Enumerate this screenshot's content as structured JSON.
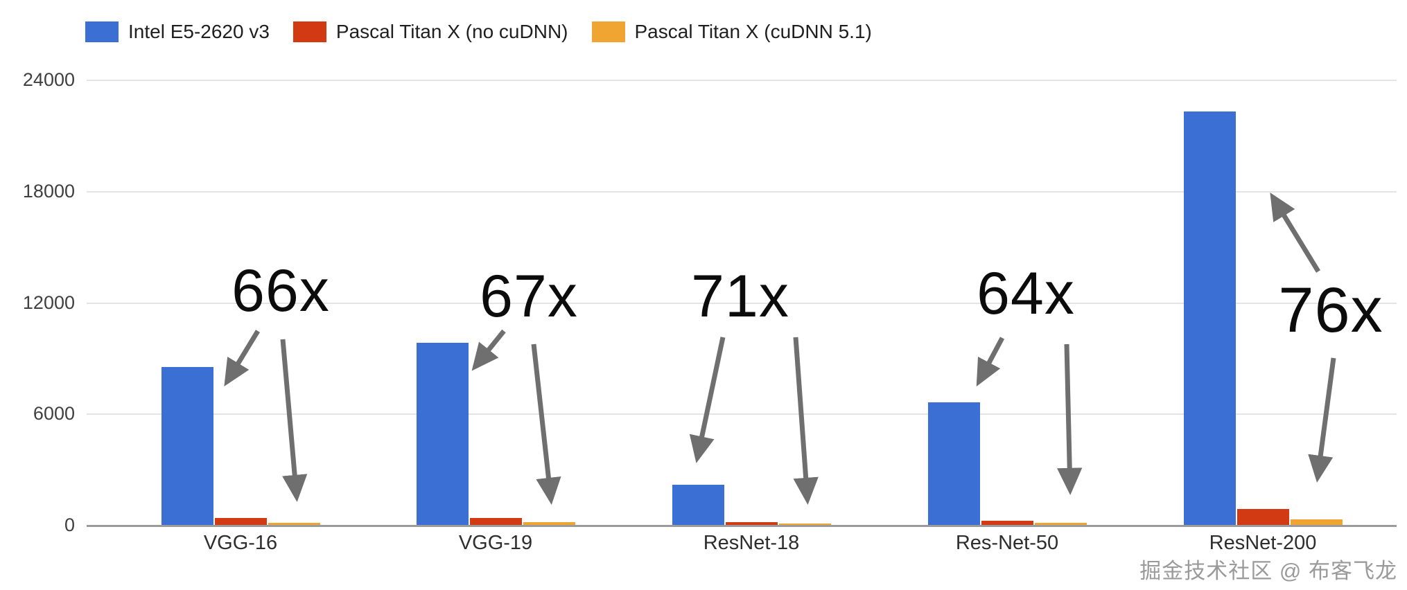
{
  "chart_data": {
    "type": "bar",
    "title": "",
    "xlabel": "",
    "ylabel": "",
    "categories": [
      "VGG-16",
      "VGG-19",
      "ResNet-18",
      "Res-Net-50",
      "ResNet-200"
    ],
    "series": [
      {
        "name": "Intel E5-2620 v3",
        "color": "#3b6fd4",
        "values": [
          8500,
          9800,
          2170,
          6600,
          22300
        ]
      },
      {
        "name": "Pascal Titan X (no cuDNN)",
        "color": "#d23a14",
        "values": [
          370,
          390,
          140,
          230,
          860
        ]
      },
      {
        "name": "Pascal Titan X (cuDNN 5.1)",
        "color": "#f0a431",
        "values": [
          130,
          150,
          30,
          105,
          295
        ]
      }
    ],
    "ylim": [
      0,
      24000
    ],
    "yticks": [
      0,
      6000,
      12000,
      18000,
      24000
    ],
    "grid": true,
    "legend_position": "top-left",
    "annotations": [
      {
        "label": "66x",
        "category": "VGG-16"
      },
      {
        "label": "67x",
        "category": "VGG-19"
      },
      {
        "label": "71x",
        "category": "ResNet-18"
      },
      {
        "label": "64x",
        "category": "Res-Net-50"
      },
      {
        "label": "76x",
        "category": "ResNet-200"
      }
    ]
  },
  "y_axis": {
    "tick_labels": [
      "0",
      "6000",
      "12000",
      "18000",
      "24000"
    ]
  },
  "watermark": "掘金技术社区 @ 布客飞龙",
  "colors": {
    "cpu_bar": "#3b6fd4",
    "gpu_no_cudnn_bar": "#d23a14",
    "gpu_cudnn_bar": "#f0a431",
    "gridline": "#e4e4e4",
    "axis": "#9b9b9b",
    "arrow": "#6f6f6f"
  }
}
